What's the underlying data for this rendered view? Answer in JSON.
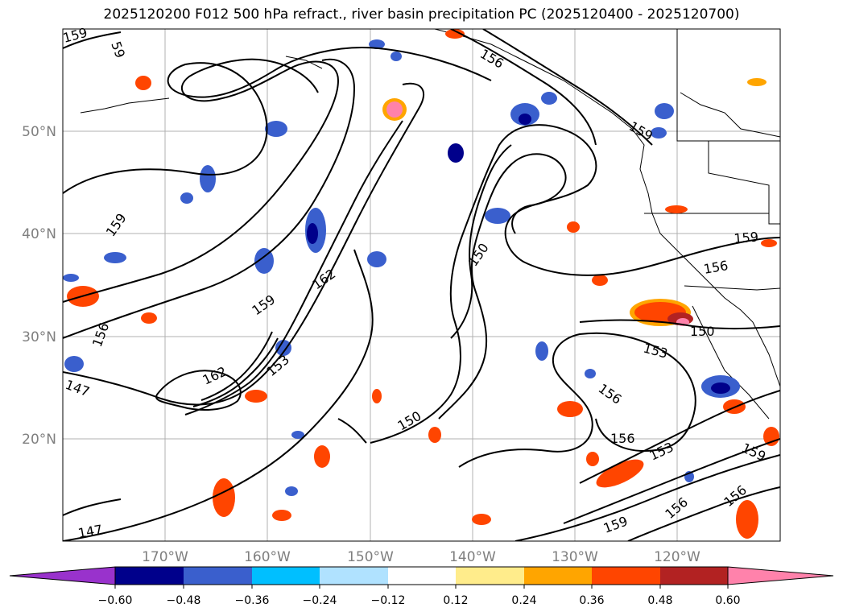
{
  "title": "2025120200 F012 500 hPa refract., river basin precipitation PC (2025120400 - 2025120700)",
  "map": {
    "lat_labels": [
      "50°N",
      "40°N",
      "30°N",
      "20°N"
    ],
    "lon_labels": [
      "170°W",
      "160°W",
      "150°W",
      "140°W",
      "130°W",
      "120°W"
    ],
    "contour_labels": [
      "159",
      "59",
      "156",
      "159",
      "159",
      "162",
      "159",
      "156",
      "153",
      "162",
      "147",
      "150",
      "150",
      "159",
      "156",
      "150",
      "153",
      "156",
      "156",
      "153",
      "159",
      "159",
      "156",
      "156",
      "147"
    ]
  },
  "colorbar": {
    "ticks": [
      "−0.60",
      "−0.48",
      "−0.36",
      "−0.24",
      "−0.12",
      "0.12",
      "0.24",
      "0.36",
      "0.48",
      "0.60"
    ],
    "colors": [
      "#9932cc",
      "#00008b",
      "#3a5fcd",
      "#00bfff",
      "#b0e2ff",
      "#ffffff",
      "#ffec8b",
      "#ffa500",
      "#ff4500",
      "#b22222",
      "#ff82ab"
    ]
  }
}
